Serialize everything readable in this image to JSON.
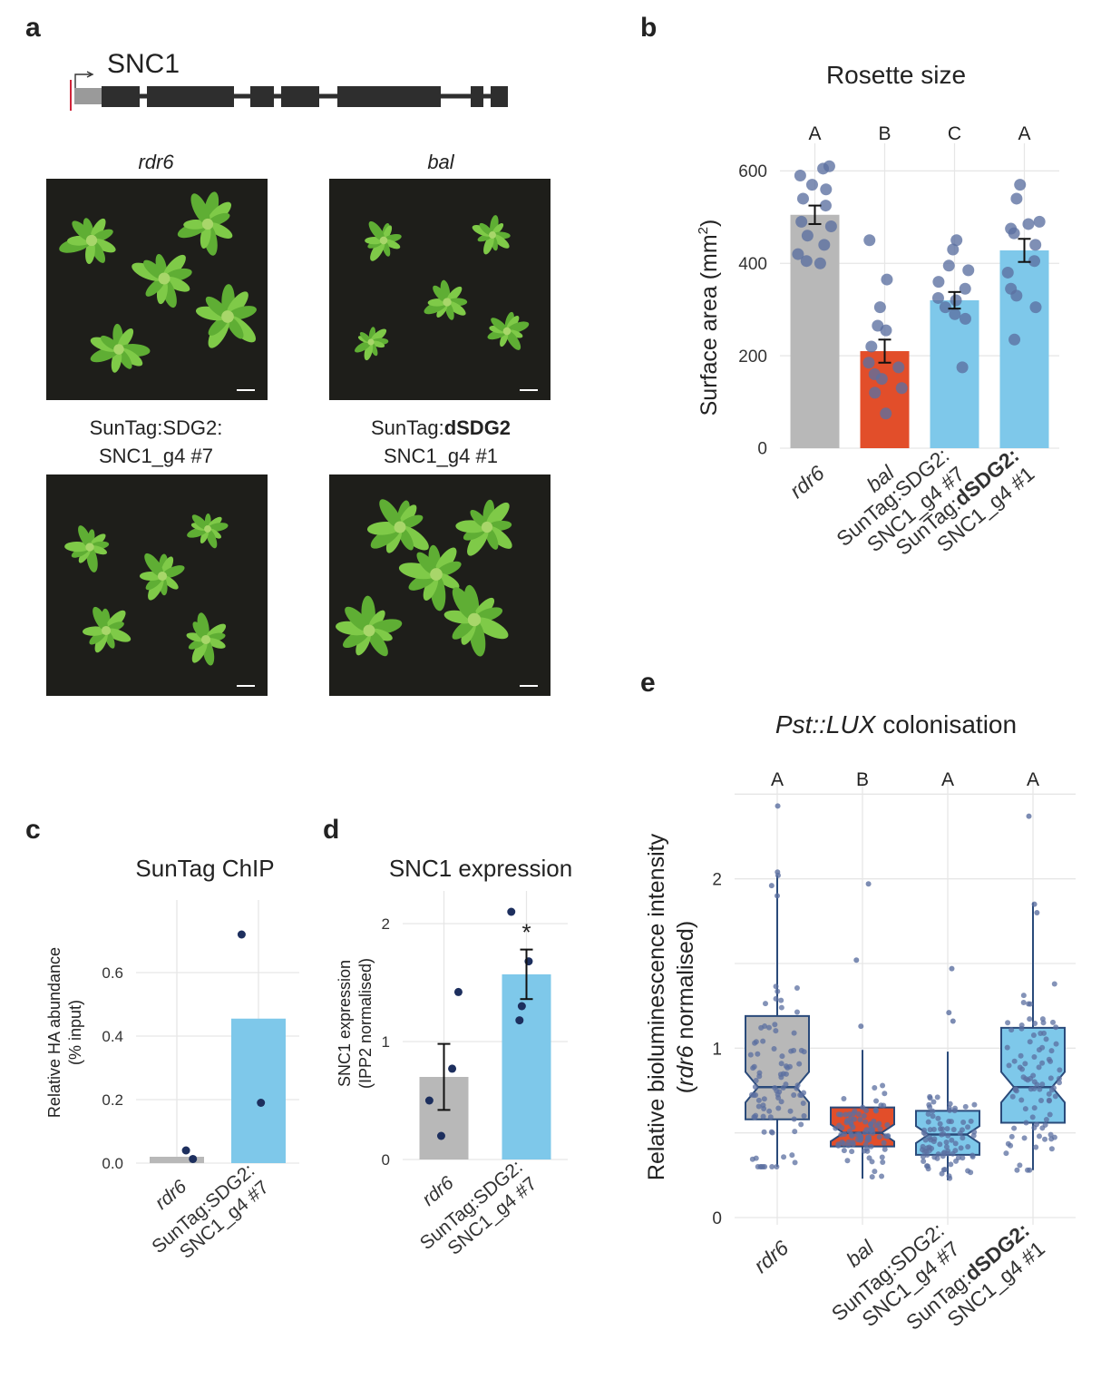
{
  "panels": {
    "a": {
      "letter": "a",
      "gene": "SNC1",
      "photos": [
        {
          "label_line1": "rdr6",
          "label_line1_bold": "",
          "label_line2": "",
          "italic": true
        },
        {
          "label_line1": "bal",
          "label_line1_bold": "",
          "label_line2": "",
          "italic": true
        },
        {
          "label_line1": "SunTag:SDG2:",
          "label_line1_bold": "",
          "label_line2": "SNC1_g4 #7",
          "italic": false
        },
        {
          "label_line1": "SunTag:",
          "label_line1_bold": "dSDG2",
          "label_line2": "SNC1_g4 #1",
          "italic": false
        }
      ]
    },
    "b": {
      "letter": "b"
    },
    "c": {
      "letter": "c"
    },
    "d": {
      "letter": "d"
    },
    "e": {
      "letter": "e"
    }
  },
  "colors": {
    "grey": "#b8b8b8",
    "red": "#e24e2a",
    "blue": "#7ec8ea",
    "point": "#5b6fa0",
    "dark_point": "#1d2f5e",
    "box_edge": "#2a4a7a",
    "photo_bg": "#1e1e1a",
    "leaf": "#6cbf3c"
  },
  "chart_data": [
    {
      "panel": "b",
      "type": "bar",
      "title": "Rosette size",
      "ylabel": "Surface area (mm",
      "ylabel_sup": "2",
      "ylabel_end": ")",
      "ylim": [
        0,
        640
      ],
      "yticks": [
        "0",
        "200",
        "400",
        "600"
      ],
      "categories": [
        {
          "line1": "rdr6",
          "line1_bold": "",
          "line2": "",
          "italic": true
        },
        {
          "line1": "bal",
          "line1_bold": "",
          "line2": "",
          "italic": true
        },
        {
          "line1": "SunTag:SDG2:",
          "line1_bold": "",
          "line2": "SNC1_g4 #7",
          "italic": false
        },
        {
          "line1": "SunTag:",
          "line1_bold": "dSDG2:",
          "line2": "SNC1_g4 #1",
          "italic": false
        }
      ],
      "letters": [
        "A",
        "B",
        "C",
        "A"
      ],
      "values": [
        505,
        210,
        320,
        428
      ],
      "errors": [
        20,
        25,
        18,
        25
      ],
      "colors": [
        "#b8b8b8",
        "#e24e2a",
        "#7ec8ea",
        "#7ec8ea"
      ],
      "points": [
        [
          610,
          605,
          590,
          570,
          560,
          540,
          525,
          490,
          480,
          460,
          440,
          420,
          405,
          400
        ],
        [
          450,
          365,
          305,
          265,
          255,
          220,
          185,
          175,
          160,
          150,
          130,
          120,
          75
        ],
        [
          450,
          430,
          395,
          385,
          360,
          345,
          325,
          320,
          305,
          290,
          280,
          175
        ],
        [
          570,
          540,
          490,
          485,
          475,
          465,
          440,
          405,
          380,
          345,
          330,
          305,
          235
        ]
      ]
    },
    {
      "panel": "c",
      "type": "bar",
      "title": "SunTag ChIP",
      "ylabel_line1": "Relative HA abundance",
      "ylabel_line2": "(% input)",
      "ylim": [
        0,
        0.8
      ],
      "yticks": [
        "0.0",
        "0.2",
        "0.4",
        "0.6"
      ],
      "categories": [
        {
          "line1": "rdr6",
          "line2": "",
          "italic": true
        },
        {
          "line1": "SunTag:SDG2:",
          "line2": "SNC1_g4 #7",
          "italic": false
        }
      ],
      "values": [
        0.02,
        0.455
      ],
      "colors": [
        "#b8b8b8",
        "#7ec8ea"
      ],
      "points": [
        [
          0.013,
          0.04
        ],
        [
          0.72,
          0.19
        ]
      ]
    },
    {
      "panel": "d",
      "type": "bar",
      "title": "SNC1 expression",
      "ylabel_line1": "SNC1 expression",
      "ylabel_line2": "(IPP2 normalised)",
      "ylim": [
        0,
        2.2
      ],
      "yticks": [
        "0",
        "1",
        "2"
      ],
      "categories": [
        {
          "line1": "rdr6",
          "line2": "",
          "italic": true
        },
        {
          "line1": "SunTag:SDG2:",
          "line2": "SNC1_g4 #7",
          "italic": false
        }
      ],
      "values": [
        0.7,
        1.57
      ],
      "errors": [
        0.28,
        0.21
      ],
      "significance": [
        "",
        "*"
      ],
      "colors": [
        "#b8b8b8",
        "#7ec8ea"
      ],
      "points": [
        [
          1.42,
          0.77,
          0.5,
          0.2
        ],
        [
          2.1,
          1.68,
          1.3,
          1.18
        ]
      ]
    },
    {
      "panel": "e",
      "type": "box",
      "title": "colonisation",
      "title_italic": "Pst::LUX",
      "ylabel_line1": "Relative bioluminescence intensity",
      "ylabel_line2_italic": "rdr6",
      "ylabel_line2_rest": " normalised)",
      "ylabel_line2_open": "(",
      "ylim": [
        0,
        2.55
      ],
      "yticks": [
        "0",
        "1",
        "2"
      ],
      "categories": [
        {
          "line1": "rdr6",
          "line1_bold": "",
          "line2": "",
          "italic": true
        },
        {
          "line1": "bal",
          "line1_bold": "",
          "line2": "",
          "italic": true
        },
        {
          "line1": "SunTag:SDG2:",
          "line1_bold": "",
          "line2": "SNC1_g4 #7",
          "italic": false
        },
        {
          "line1": "SunTag:",
          "line1_bold": "dSDG2:",
          "line2": "SNC1_g4 #1",
          "italic": false
        }
      ],
      "letters": [
        "A",
        "B",
        "A",
        "A"
      ],
      "boxes": [
        {
          "q1": 0.58,
          "median": 0.77,
          "q3": 1.19,
          "lower": 0.3,
          "upper": 2.02,
          "notch": 0.09
        },
        {
          "q1": 0.42,
          "median": 0.5,
          "q3": 0.65,
          "lower": 0.23,
          "upper": 0.99,
          "notch": 0.05
        },
        {
          "q1": 0.37,
          "median": 0.49,
          "q3": 0.63,
          "lower": 0.22,
          "upper": 0.98,
          "notch": 0.05
        },
        {
          "q1": 0.56,
          "median": 0.77,
          "q3": 1.12,
          "lower": 0.28,
          "upper": 1.86,
          "notch": 0.09
        }
      ],
      "outliers": [
        [
          2.43,
          2.04,
          2.02,
          1.96,
          1.9
        ],
        [
          1.97,
          1.52,
          1.13
        ],
        [
          1.47,
          1.21,
          1.16
        ],
        [
          2.37,
          1.85,
          1.8
        ]
      ],
      "colors": [
        "#b8b8b8",
        "#e24e2a",
        "#7ec8ea",
        "#7ec8ea"
      ]
    }
  ]
}
